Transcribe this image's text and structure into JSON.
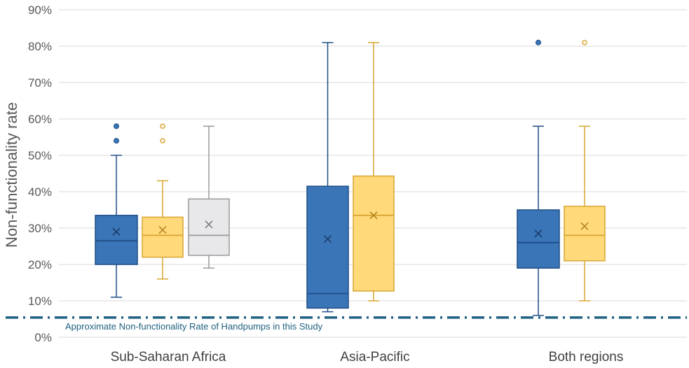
{
  "chart_data": {
    "type": "box",
    "ylabel": "Non-functionality rate",
    "ylim": [
      0,
      90
    ],
    "yticks": [
      0,
      10,
      20,
      30,
      40,
      50,
      60,
      70,
      80,
      90
    ],
    "ytick_labels": [
      "0%",
      "10%",
      "20%",
      "30%",
      "40%",
      "50%",
      "60%",
      "70%",
      "80%",
      "90%"
    ],
    "grid": true,
    "categories": [
      "Sub-Saharan Africa",
      "Asia-Pacific",
      "Both regions"
    ],
    "colors": {
      "blue_fill": "#3a75b8",
      "blue_stroke": "#1f4e86",
      "yellow_fill": "#ffd97a",
      "yellow_stroke": "#d9a532",
      "gray_fill": "#e8e8ea",
      "gray_stroke": "#9a9a9a",
      "reference_line": "#1f6080"
    },
    "boxes": [
      {
        "category": "Sub-Saharan Africa",
        "color": "blue",
        "min": 11,
        "q1": 20,
        "median": 26.5,
        "q3": 33.5,
        "max": 50,
        "mean": 29,
        "outliers": [
          54,
          58
        ]
      },
      {
        "category": "Sub-Saharan Africa",
        "color": "yellow",
        "min": 16,
        "q1": 22,
        "median": 28,
        "q3": 33,
        "max": 43,
        "mean": 29.5,
        "outliers": [
          54,
          58
        ]
      },
      {
        "category": "Sub-Saharan Africa",
        "color": "gray",
        "min": 19,
        "q1": 22.5,
        "median": 28,
        "q3": 38,
        "max": 58,
        "mean": 31,
        "outliers": []
      },
      {
        "category": "Asia-Pacific",
        "color": "blue",
        "min": 7,
        "q1": 8,
        "median": 12,
        "q3": 41.5,
        "max": 81,
        "mean": 27,
        "outliers": []
      },
      {
        "category": "Asia-Pacific",
        "color": "yellow",
        "min": 10,
        "q1": 12.7,
        "median": 33.5,
        "q3": 44.3,
        "max": 81,
        "mean": 33.5,
        "outliers": []
      },
      {
        "category": "Both regions",
        "color": "blue",
        "min": 6,
        "q1": 19,
        "median": 26,
        "q3": 35,
        "max": 58,
        "mean": 28.5,
        "outliers": [
          81
        ]
      },
      {
        "category": "Both regions",
        "color": "yellow",
        "min": 10,
        "q1": 21,
        "median": 28,
        "q3": 36,
        "max": 58,
        "mean": 30.5,
        "outliers": [
          81
        ]
      }
    ],
    "reference_line": {
      "value": 5.4,
      "label": "Approximate Non-functionality Rate of Handpumps in this Study"
    }
  }
}
